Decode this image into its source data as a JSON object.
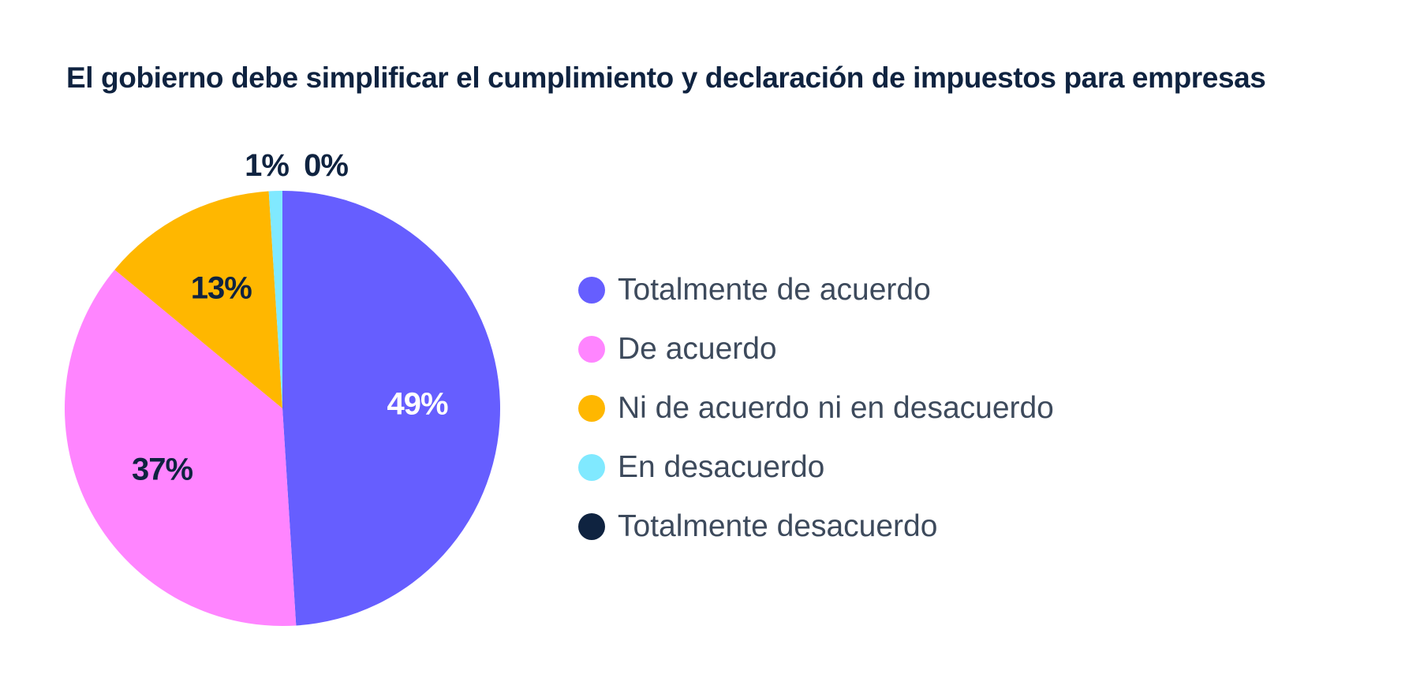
{
  "chart_data": {
    "type": "pie",
    "title": "El gobierno debe simplificar el cumplimiento y declaración de impuestos para empresas",
    "categories": [
      "Totalmente de acuerdo",
      "De acuerdo",
      "Ni de acuerdo ni en desacuerdo",
      "En desacuerdo",
      "Totalmente desacuerdo"
    ],
    "values": [
      49,
      37,
      13,
      1,
      0
    ],
    "labels": [
      "49%",
      "37%",
      "13%",
      "1%",
      "0%"
    ],
    "colors": [
      "#665eff",
      "#ff85ff",
      "#ffb700",
      "#80e9ff",
      "#0f2340"
    ],
    "label_colors": [
      "#ffffff",
      "#0f2340",
      "#0f2340",
      "#0f2340",
      "#0f2340"
    ],
    "legend_position": "right"
  }
}
